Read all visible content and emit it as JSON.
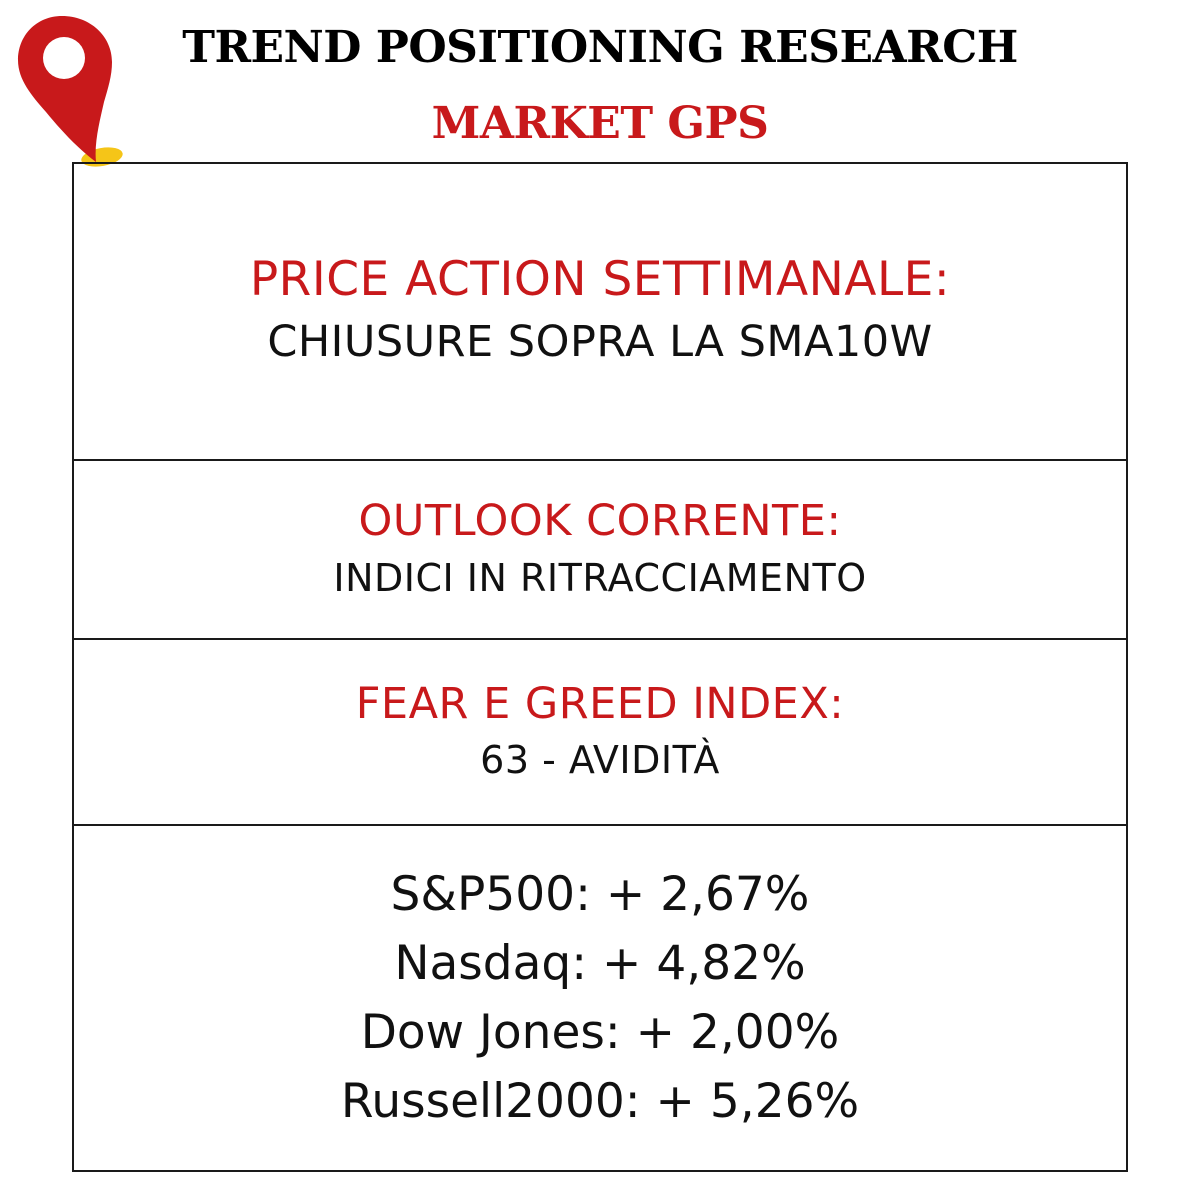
{
  "header": {
    "title": "TREND POSITIONING RESEARCH",
    "subtitle": "MARKET GPS",
    "logo_icon": "map-pin-icon"
  },
  "colors": {
    "accent": "#c8191b",
    "pin_base": "#f5c518",
    "text": "#111111",
    "border": "#1a1a1a"
  },
  "price_action": {
    "heading": "PRICE ACTION SETTIMANALE:",
    "value": "CHIUSURE SOPRA LA SMA10W"
  },
  "outlook": {
    "heading": "OUTLOOK CORRENTE:",
    "value": "INDICI IN RITRACCIAMENTO"
  },
  "fear_greed": {
    "heading": "FEAR E GREED INDEX:",
    "value": "63 - AVIDITÀ"
  },
  "indices": [
    {
      "name": "S&P500",
      "change": ": + 2,67%"
    },
    {
      "name": "Nasdaq",
      "change": ": + 4,82%"
    },
    {
      "name": "Dow Jones",
      "change": ": + 2,00%"
    },
    {
      "name": "Russell2000",
      "change": ": + 5,26%"
    }
  ]
}
